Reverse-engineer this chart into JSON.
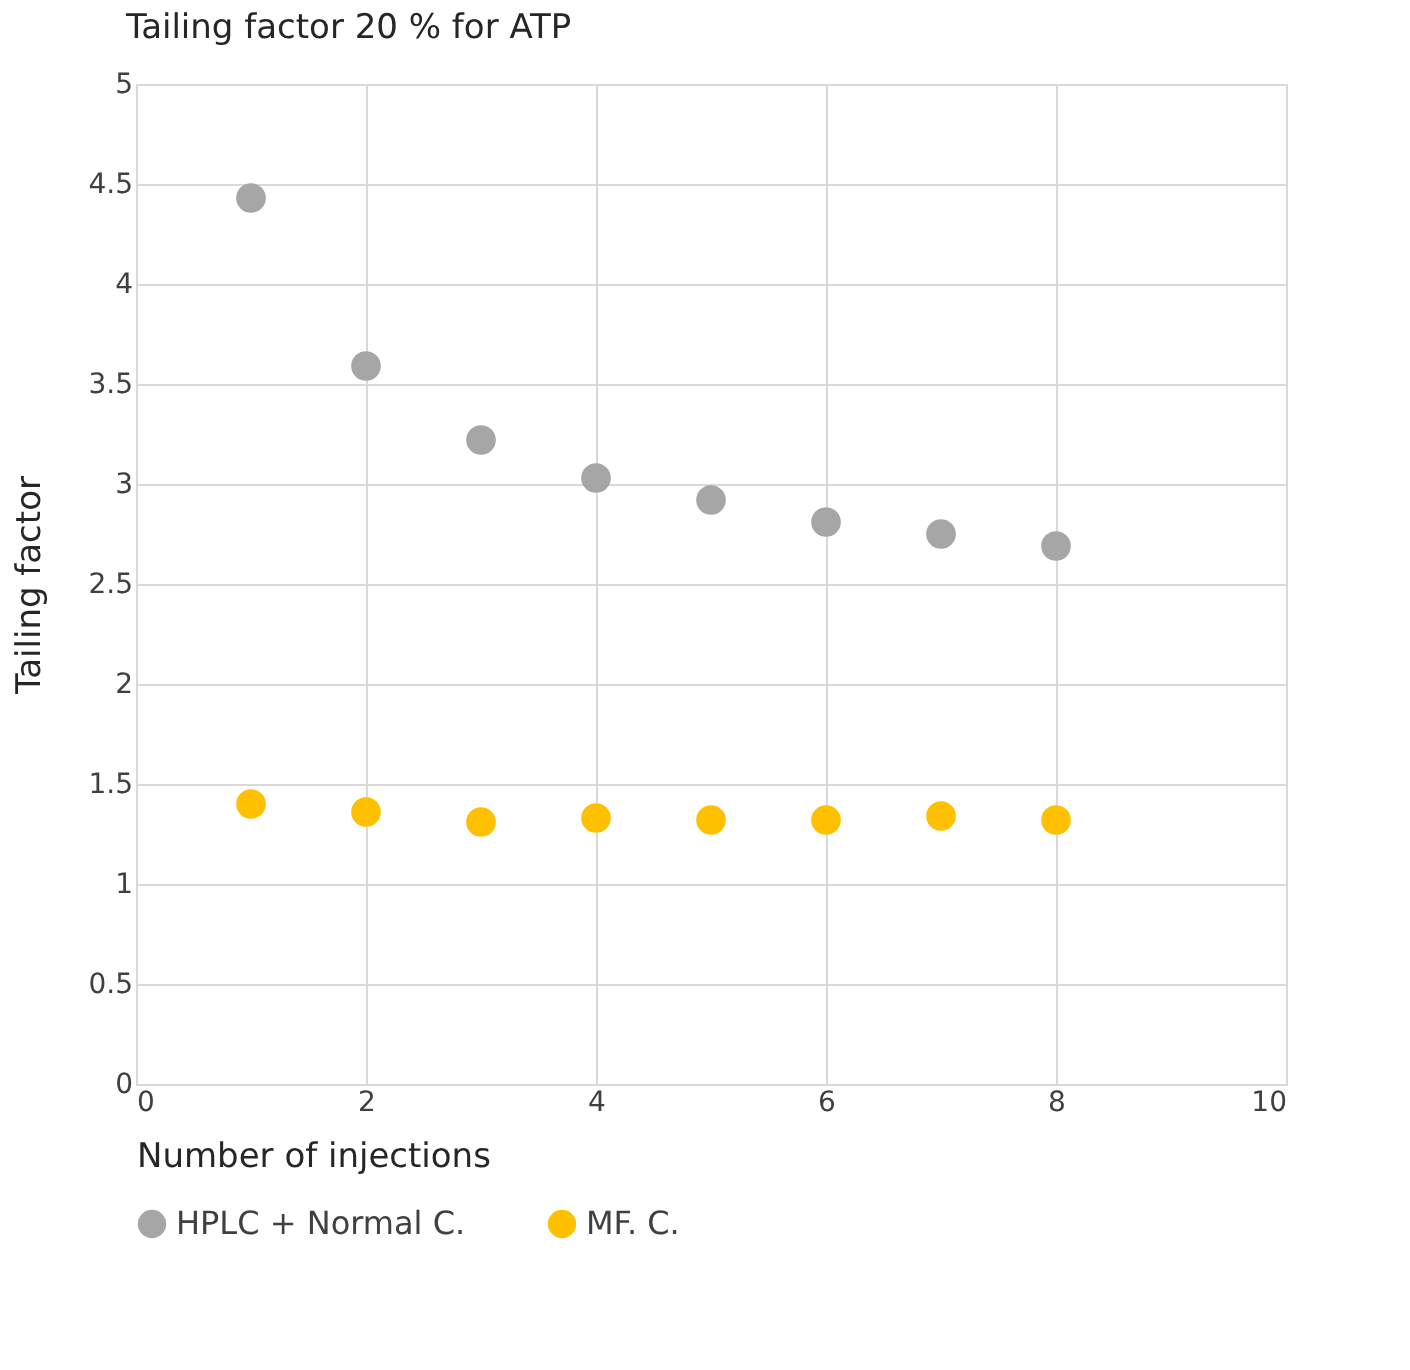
{
  "chart_data": {
    "type": "scatter",
    "title": "Tailing factor 20 % for ATP",
    "xlabel": "Number of injections",
    "ylabel": "Tailing factor",
    "x": [
      1,
      2,
      3,
      4,
      5,
      6,
      7,
      8
    ],
    "series": [
      {
        "name": "HPLC + Normal C.",
        "color": "#a6a6a6",
        "values": [
          4.43,
          3.59,
          3.22,
          3.03,
          2.92,
          2.81,
          2.75,
          2.69
        ]
      },
      {
        "name": "MF. C.",
        "color": "#ffc000",
        "values": [
          1.4,
          1.36,
          1.31,
          1.33,
          1.32,
          1.32,
          1.34,
          1.32
        ]
      }
    ],
    "xlim": [
      0,
      10
    ],
    "xticks": [
      0,
      2,
      4,
      6,
      8,
      10
    ],
    "ylim": [
      0,
      5
    ],
    "yticks": [
      0,
      0.5,
      1,
      1.5,
      2,
      2.5,
      3,
      3.5,
      4,
      4.5,
      5
    ],
    "grid": true,
    "legend": "bottom",
    "marker": "circle"
  }
}
